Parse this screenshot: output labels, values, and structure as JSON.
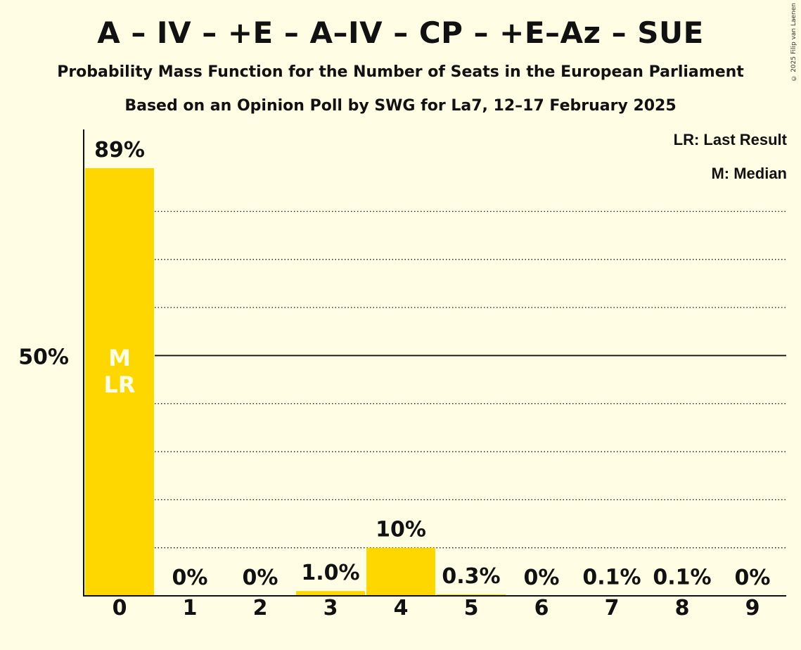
{
  "header": {
    "title": "A – IV – +E – A–IV – CP – +E–Az – SUE",
    "subtitle1": "Probability Mass Function for the Number of Seats in the European Parliament",
    "subtitle2": "Based on an Opinion Poll by SWG for La7, 12–17 February 2025",
    "copyright": "© 2025 Filip van Laenen"
  },
  "legend": {
    "last_result": "LR: Last Result",
    "median": "M: Median"
  },
  "colors": {
    "bar": "#FFD700",
    "background": "#FFFDE3",
    "bar_marker_text": "#FFFDE3"
  },
  "chart_data": {
    "type": "bar",
    "categories": [
      "0",
      "1",
      "2",
      "3",
      "4",
      "5",
      "6",
      "7",
      "8",
      "9"
    ],
    "values": [
      89,
      0,
      0,
      1.0,
      10,
      0.3,
      0,
      0.1,
      0.1,
      0
    ],
    "value_labels": [
      "89%",
      "0%",
      "0%",
      "1.0%",
      "10%",
      "0.3%",
      "0%",
      "0.1%",
      "0.1%",
      "0%"
    ],
    "ylim": [
      0,
      89
    ],
    "y_tick_label": "50%",
    "y_tick_value": 50,
    "gridlines": [
      10,
      20,
      30,
      40,
      60,
      70,
      80
    ],
    "bar_markers": [
      {
        "category": "0",
        "labels": [
          "M",
          "LR"
        ]
      }
    ],
    "xlabel": "",
    "ylabel": ""
  }
}
